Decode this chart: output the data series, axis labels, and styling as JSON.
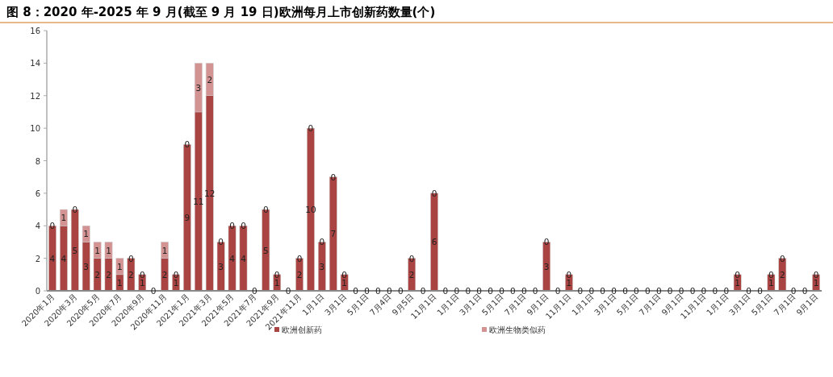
{
  "chart_data": {
    "type": "bar",
    "title": "图 8：2020 年-2025 年 9 月(截至 9 月 19 日)欧洲每月上市创新药数量(个)",
    "categories": [
      "2020年1月",
      null,
      "2020年3月",
      null,
      "2020年5月",
      null,
      "2020年7月",
      null,
      "2020年9月",
      null,
      "2020年11月",
      null,
      "2021年1月",
      null,
      "2021年3月",
      null,
      "2021年5月",
      null,
      "2021年7月",
      null,
      "2021年9月",
      null,
      "2021年11月",
      null,
      "1月1日",
      null,
      "3月1日",
      null,
      "5月1日",
      null,
      "7月4日",
      null,
      "9月5日",
      null,
      "11月1日",
      null,
      "1月1日",
      null,
      "3月1日",
      null,
      "5月1日",
      null,
      "7月1日",
      null,
      "9月1日",
      null,
      "11月1日",
      null,
      "1月1日",
      null,
      "3月1日",
      null,
      "5月1日",
      null,
      "7月1日",
      null,
      "9月1日",
      null,
      "11月1日",
      null,
      "1月1日",
      null,
      "3月1日",
      null,
      "5月1日",
      null,
      "7月1日",
      null,
      "9月1日"
    ],
    "series": [
      {
        "name": "欧洲创新药",
        "color": "#a94442",
        "values": [
          4,
          4,
          5,
          3,
          2,
          2,
          1,
          2,
          1,
          0,
          2,
          1,
          9,
          11,
          12,
          3,
          4,
          4,
          0,
          5,
          1,
          0,
          2,
          10,
          3,
          7,
          1,
          0,
          0,
          0,
          0,
          0,
          2,
          0,
          6,
          0,
          0,
          0,
          0,
          0,
          0,
          0,
          0,
          0,
          3,
          0,
          1,
          0,
          0,
          0,
          0,
          0,
          0,
          0,
          0,
          0,
          0,
          0,
          0,
          0,
          0,
          1,
          0,
          0,
          1,
          2,
          0,
          0,
          1
        ]
      },
      {
        "name": "欧洲生物类似药",
        "color": "#d49393",
        "value_labels": [
          "0",
          "1",
          "0",
          "1",
          "1",
          "1",
          "1",
          "0",
          "0",
          null,
          "1",
          "0",
          "0",
          "3",
          "2",
          "0",
          "0",
          "0",
          null,
          "0",
          "0",
          null,
          "0",
          "0",
          "0",
          "0",
          "0",
          null,
          null,
          null,
          null,
          null,
          "0",
          null,
          "0",
          null,
          null,
          null,
          null,
          null,
          null,
          null,
          null,
          null,
          "0",
          null,
          "0",
          null,
          null,
          null,
          null,
          null,
          null,
          null,
          null,
          null,
          null,
          null,
          null,
          null,
          null,
          "0",
          null,
          null,
          "0",
          "0",
          null,
          null,
          "0"
        ],
        "values": [
          0,
          1,
          0,
          1,
          1,
          1,
          1,
          0,
          0,
          0,
          1,
          0,
          0,
          3,
          2,
          0,
          0,
          0,
          0,
          0,
          0,
          0,
          0,
          0,
          0,
          0,
          0,
          0,
          0,
          0,
          0,
          0,
          0,
          0,
          0,
          0,
          0,
          0,
          0,
          0,
          0,
          0,
          0,
          0,
          0,
          0,
          0,
          0,
          0,
          0,
          0,
          0,
          0,
          0,
          0,
          0,
          0,
          0,
          0,
          0,
          0,
          0,
          0,
          0,
          0,
          0,
          0,
          0,
          0
        ]
      }
    ],
    "stacked": true,
    "ylim": [
      0,
      16
    ],
    "yticks": [
      0,
      2,
      4,
      6,
      8,
      10,
      12,
      14,
      16
    ],
    "grid": false,
    "legend": "bottom",
    "data_labels": true
  }
}
